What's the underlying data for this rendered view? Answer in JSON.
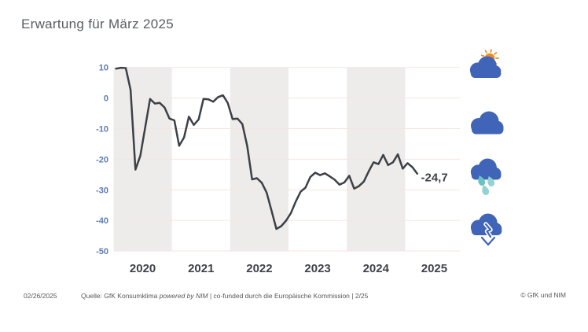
{
  "title": "Erwartung für März 2025",
  "chart_data": {
    "type": "line",
    "title": "Erwartung für März 2025",
    "categories": [
      "2020",
      "2021",
      "2022",
      "2023",
      "2024",
      "2025"
    ],
    "y_ticks": [
      10,
      0,
      -10,
      -20,
      -30,
      -40,
      -50
    ],
    "ylim": [
      -50,
      10
    ],
    "frequency": "monthly",
    "x_start_month": "2020-01",
    "x_end_month": "2025-03",
    "values": [
      9.6,
      9.9,
      9.8,
      2.7,
      -23.4,
      -18.9,
      -9.6,
      -0.3,
      -1.8,
      -1.6,
      -3.1,
      -6.7,
      -7.3,
      -15.6,
      -12.9,
      -6.1,
      -8.8,
      -7.0,
      -0.3,
      -0.4,
      -1.2,
      0.3,
      0.9,
      -1.6,
      -6.9,
      -6.7,
      -8.5,
      -15.7,
      -26.6,
      -26.2,
      -27.7,
      -30.9,
      -36.8,
      -42.8,
      -41.9,
      -40.1,
      -37.6,
      -33.8,
      -30.6,
      -29.3,
      -25.8,
      -24.4,
      -25.2,
      -24.6,
      -25.6,
      -26.7,
      -28.3,
      -27.6,
      -25.4,
      -29.6,
      -28.8,
      -27.3,
      -24.0,
      -21.0,
      -21.6,
      -18.6,
      -21.9,
      -21.0,
      -18.4,
      -23.1,
      -21.3,
      -22.6,
      -24.7
    ],
    "end_label": "-24,7",
    "grid": "horizontal",
    "legend_position": "none",
    "alternating_year_bands": true
  },
  "colors": {
    "line": "#3C4147",
    "band": "#EDECEB",
    "grid": "#F5E6E0",
    "ytick": "#5C7CB4",
    "xtick": "#3F4349",
    "cloud": "#4064B8",
    "sun": "#EE8C21",
    "drop1": "#69C3C0",
    "drop2": "#92D3CF"
  },
  "icons": [
    {
      "name": "sun-cloud-icon"
    },
    {
      "name": "cloud-icon"
    },
    {
      "name": "rain-cloud-icon"
    },
    {
      "name": "cloud-down-arrow-icon"
    }
  ],
  "footer": {
    "date": "02/26/2025",
    "source_prefix": "Quelle: GfK Konsumklima ",
    "source_italic": "powered by NIM",
    "source_suffix": " | co-funded durch die Europäische Kommission | 2/25",
    "copyright": "© GfK und NIM"
  }
}
